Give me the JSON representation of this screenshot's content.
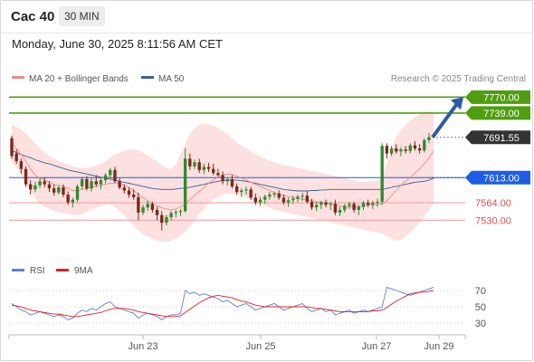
{
  "header": {
    "symbol": "Cac 40",
    "timeframe": "30 MIN",
    "datetime": "Monday, June 30, 2025 8:11:56 AM CET"
  },
  "legend": {
    "ma20": {
      "label": "MA 20 + Bollinger Bands",
      "color": "#f08a8a"
    },
    "ma50": {
      "label": "MA 50",
      "color": "#3a5f9c"
    },
    "credit": "Research © 2025 Trading Central"
  },
  "rsi_legend": {
    "rsi": {
      "label": "RSI",
      "color": "#5b7fd6"
    },
    "ma9": {
      "label": "9MA",
      "color": "#e02020"
    }
  },
  "colors": {
    "resistance": "#4f9e0f",
    "support": "#f4a0a0",
    "pivot": "#1d5ee6",
    "current": "#333333",
    "bull": "#2e8b2e",
    "bear": "#7a2a1a",
    "band_fill": "#fde0e0",
    "arrow": "#2b5aa8"
  },
  "chart_data": [
    {
      "type": "candlestick",
      "title": "",
      "ylim": [
        7490,
        7790
      ],
      "x_ticks": [
        "Jun 23",
        "Jun 25",
        "Jun 27",
        "Jun 29"
      ],
      "levels": [
        {
          "value": 7770.0,
          "label": "7770.00",
          "kind": "resistance"
        },
        {
          "value": 7739.0,
          "label": "7739.00",
          "kind": "resistance"
        },
        {
          "value": 7691.55,
          "label": "7691.55",
          "kind": "current"
        },
        {
          "value": 7613.0,
          "label": "7613.00",
          "kind": "pivot"
        },
        {
          "value": 7564.0,
          "label": "7564.00",
          "kind": "support"
        },
        {
          "value": 7530.0,
          "label": "7530.00",
          "kind": "support"
        }
      ],
      "candles": [
        [
          7690,
          7695,
          7650,
          7655
        ],
        [
          7660,
          7668,
          7640,
          7645
        ],
        [
          7645,
          7650,
          7620,
          7630
        ],
        [
          7630,
          7635,
          7595,
          7600
        ],
        [
          7600,
          7608,
          7580,
          7590
        ],
        [
          7590,
          7605,
          7585,
          7598
        ],
        [
          7598,
          7612,
          7592,
          7606
        ],
        [
          7606,
          7614,
          7594,
          7600
        ],
        [
          7600,
          7606,
          7585,
          7592
        ],
        [
          7592,
          7600,
          7578,
          7584
        ],
        [
          7584,
          7597,
          7580,
          7594
        ],
        [
          7594,
          7600,
          7575,
          7580
        ],
        [
          7580,
          7586,
          7560,
          7565
        ],
        [
          7565,
          7574,
          7555,
          7570
        ],
        [
          7570,
          7600,
          7566,
          7596
        ],
        [
          7596,
          7615,
          7590,
          7610
        ],
        [
          7610,
          7616,
          7588,
          7592
        ],
        [
          7592,
          7612,
          7586,
          7606
        ],
        [
          7606,
          7618,
          7595,
          7600
        ],
        [
          7600,
          7612,
          7590,
          7608
        ],
        [
          7608,
          7622,
          7602,
          7618
        ],
        [
          7618,
          7632,
          7612,
          7628
        ],
        [
          7628,
          7634,
          7602,
          7606
        ],
        [
          7606,
          7612,
          7590,
          7594
        ],
        [
          7594,
          7600,
          7582,
          7588
        ],
        [
          7588,
          7594,
          7574,
          7580
        ],
        [
          7580,
          7590,
          7570,
          7575
        ],
        [
          7575,
          7584,
          7530,
          7545
        ],
        [
          7545,
          7560,
          7540,
          7555
        ],
        [
          7555,
          7568,
          7548,
          7562
        ],
        [
          7562,
          7566,
          7545,
          7550
        ],
        [
          7550,
          7556,
          7530,
          7540
        ],
        [
          7540,
          7548,
          7510,
          7525
        ],
        [
          7525,
          7540,
          7520,
          7536
        ],
        [
          7536,
          7548,
          7530,
          7544
        ],
        [
          7544,
          7550,
          7536,
          7546
        ],
        [
          7546,
          7552,
          7538,
          7548
        ],
        [
          7548,
          7670,
          7545,
          7650
        ],
        [
          7650,
          7660,
          7628,
          7635
        ],
        [
          7635,
          7648,
          7630,
          7643
        ],
        [
          7643,
          7650,
          7622,
          7628
        ],
        [
          7628,
          7640,
          7620,
          7634
        ],
        [
          7634,
          7642,
          7624,
          7630
        ],
        [
          7630,
          7640,
          7618,
          7622
        ],
        [
          7622,
          7630,
          7615,
          7618
        ],
        [
          7618,
          7625,
          7600,
          7606
        ],
        [
          7606,
          7614,
          7598,
          7610
        ],
        [
          7610,
          7618,
          7592,
          7596
        ],
        [
          7596,
          7602,
          7580,
          7585
        ],
        [
          7585,
          7592,
          7575,
          7588
        ],
        [
          7588,
          7596,
          7580,
          7590
        ],
        [
          7590,
          7595,
          7570,
          7574
        ],
        [
          7574,
          7582,
          7560,
          7565
        ],
        [
          7565,
          7576,
          7558,
          7570
        ],
        [
          7570,
          7580,
          7562,
          7576
        ],
        [
          7576,
          7585,
          7570,
          7580
        ],
        [
          7580,
          7586,
          7574,
          7582
        ],
        [
          7582,
          7588,
          7570,
          7574
        ],
        [
          7574,
          7580,
          7560,
          7565
        ],
        [
          7565,
          7574,
          7556,
          7569
        ],
        [
          7569,
          7578,
          7562,
          7572
        ],
        [
          7572,
          7580,
          7566,
          7576
        ],
        [
          7576,
          7584,
          7568,
          7578
        ],
        [
          7578,
          7586,
          7562,
          7566
        ],
        [
          7566,
          7572,
          7550,
          7555
        ],
        [
          7555,
          7566,
          7548,
          7560
        ],
        [
          7560,
          7568,
          7552,
          7565
        ],
        [
          7565,
          7570,
          7555,
          7560
        ],
        [
          7560,
          7566,
          7550,
          7562
        ],
        [
          7562,
          7570,
          7540,
          7545
        ],
        [
          7545,
          7556,
          7538,
          7550
        ],
        [
          7550,
          7562,
          7545,
          7558
        ],
        [
          7558,
          7566,
          7552,
          7562
        ],
        [
          7562,
          7566,
          7545,
          7550
        ],
        [
          7550,
          7560,
          7540,
          7556
        ],
        [
          7556,
          7568,
          7550,
          7564
        ],
        [
          7564,
          7570,
          7556,
          7560
        ],
        [
          7560,
          7568,
          7552,
          7564
        ],
        [
          7564,
          7572,
          7556,
          7566
        ],
        [
          7566,
          7680,
          7560,
          7675
        ],
        [
          7675,
          7680,
          7650,
          7660
        ],
        [
          7660,
          7675,
          7655,
          7670
        ],
        [
          7670,
          7678,
          7660,
          7664
        ],
        [
          7664,
          7672,
          7655,
          7668
        ],
        [
          7668,
          7675,
          7660,
          7665
        ],
        [
          7665,
          7680,
          7660,
          7676
        ],
        [
          7676,
          7684,
          7666,
          7670
        ],
        [
          7670,
          7678,
          7660,
          7666
        ],
        [
          7666,
          7690,
          7662,
          7686
        ],
        [
          7686,
          7700,
          7680,
          7692
        ]
      ],
      "ma20": [
        7680,
        7670,
        7658,
        7645,
        7630,
        7618,
        7612,
        7608,
        7605,
        7600,
        7598,
        7596,
        7592,
        7588,
        7588,
        7590,
        7592,
        7594,
        7596,
        7598,
        7600,
        7602,
        7603,
        7602,
        7598,
        7594,
        7588,
        7580,
        7574,
        7568,
        7562,
        7558,
        7554,
        7552,
        7550,
        7552,
        7556,
        7562,
        7570,
        7578,
        7586,
        7594,
        7602,
        7608,
        7614,
        7618,
        7620,
        7619,
        7616,
        7612,
        7608,
        7604,
        7600,
        7596,
        7592,
        7588,
        7584,
        7580,
        7578,
        7576,
        7574,
        7572,
        7571,
        7570,
        7568,
        7566,
        7565,
        7564,
        7562,
        7560,
        7558,
        7556,
        7556,
        7556,
        7557,
        7558,
        7559,
        7560,
        7561,
        7562,
        7568,
        7578,
        7588,
        7598,
        7606,
        7614,
        7622,
        7630,
        7640,
        7652,
        7665
      ],
      "bb_upper": [
        7716,
        7712,
        7706,
        7700,
        7690,
        7680,
        7670,
        7662,
        7655,
        7650,
        7646,
        7642,
        7638,
        7635,
        7633,
        7632,
        7632,
        7634,
        7636,
        7640,
        7646,
        7652,
        7658,
        7662,
        7665,
        7668,
        7668,
        7666,
        7662,
        7656,
        7650,
        7644,
        7638,
        7632,
        7630,
        7640,
        7660,
        7680,
        7698,
        7710,
        7716,
        7718,
        7717,
        7714,
        7710,
        7704,
        7698,
        7690,
        7682,
        7676,
        7670,
        7664,
        7658,
        7654,
        7650,
        7646,
        7643,
        7640,
        7638,
        7636,
        7634,
        7632,
        7630,
        7628,
        7626,
        7624,
        7622,
        7620,
        7618,
        7616,
        7614,
        7612,
        7610,
        7608,
        7606,
        7605,
        7605,
        7606,
        7608,
        7612,
        7640,
        7670,
        7692,
        7706,
        7716,
        7724,
        7730,
        7736,
        7740,
        7742,
        7742
      ],
      "bb_lower": [
        7644,
        7632,
        7620,
        7605,
        7588,
        7572,
        7562,
        7556,
        7552,
        7548,
        7546,
        7544,
        7542,
        7540,
        7540,
        7542,
        7546,
        7550,
        7554,
        7558,
        7560,
        7560,
        7556,
        7548,
        7540,
        7530,
        7520,
        7510,
        7503,
        7498,
        7494,
        7490,
        7488,
        7488,
        7490,
        7494,
        7500,
        7508,
        7518,
        7530,
        7542,
        7552,
        7562,
        7570,
        7576,
        7580,
        7582,
        7582,
        7580,
        7578,
        7574,
        7570,
        7566,
        7562,
        7558,
        7554,
        7550,
        7548,
        7546,
        7544,
        7542,
        7540,
        7538,
        7536,
        7534,
        7532,
        7530,
        7528,
        7526,
        7524,
        7522,
        7520,
        7518,
        7516,
        7514,
        7512,
        7510,
        7508,
        7506,
        7504,
        7500,
        7494,
        7490,
        7492,
        7498,
        7506,
        7516,
        7526,
        7538,
        7550,
        7564
      ],
      "ma50": [
        7665,
        7662,
        7658,
        7655,
        7652,
        7648,
        7645,
        7642,
        7640,
        7637,
        7634,
        7631,
        7628,
        7626,
        7624,
        7622,
        7620,
        7618,
        7616,
        7614,
        7612,
        7610,
        7608,
        7606,
        7604,
        7602,
        7600,
        7598,
        7596,
        7594,
        7592,
        7591,
        7590,
        7590,
        7590,
        7591,
        7592,
        7593,
        7594,
        7596,
        7598,
        7600,
        7602,
        7604,
        7606,
        7607,
        7608,
        7608,
        7608,
        7607,
        7606,
        7604,
        7602,
        7600,
        7598,
        7596,
        7594,
        7592,
        7590,
        7589,
        7588,
        7587,
        7587,
        7587,
        7588,
        7588,
        7589,
        7589,
        7590,
        7590,
        7590,
        7590,
        7590,
        7590,
        7590,
        7590,
        7590,
        7590,
        7590,
        7590,
        7592,
        7594,
        7596,
        7598,
        7600,
        7602,
        7604,
        7605,
        7606,
        7608,
        7612
      ]
    },
    {
      "type": "line",
      "title": "",
      "ylim": [
        20,
        80
      ],
      "y_ticks": [
        "70",
        "50",
        "30"
      ],
      "series": [
        {
          "name": "RSI",
          "values": [
            54,
            50,
            46,
            44,
            40,
            42,
            44,
            42,
            40,
            38,
            40,
            38,
            34,
            36,
            42,
            46,
            44,
            48,
            46,
            50,
            54,
            56,
            50,
            48,
            46,
            44,
            42,
            36,
            40,
            42,
            40,
            38,
            34,
            38,
            40,
            40,
            42,
            70,
            66,
            68,
            64,
            66,
            64,
            62,
            60,
            56,
            58,
            54,
            50,
            52,
            54,
            50,
            46,
            48,
            50,
            52,
            54,
            50,
            46,
            48,
            50,
            52,
            54,
            48,
            44,
            46,
            48,
            44,
            46,
            40,
            42,
            44,
            46,
            42,
            44,
            46,
            44,
            46,
            48,
            50,
            74,
            72,
            70,
            68,
            66,
            64,
            66,
            68,
            70,
            72,
            74
          ]
        },
        {
          "name": "9MA",
          "values": [
            52,
            51,
            50,
            48,
            46,
            45,
            44,
            43,
            42,
            41,
            41,
            40,
            39,
            38,
            38,
            39,
            40,
            41,
            42,
            43,
            45,
            47,
            48,
            48,
            48,
            47,
            46,
            44,
            43,
            42,
            41,
            40,
            39,
            38,
            38,
            38,
            39,
            43,
            47,
            51,
            55,
            58,
            61,
            63,
            64,
            63,
            62,
            61,
            59,
            57,
            56,
            54,
            52,
            51,
            50,
            50,
            50,
            50,
            50,
            50,
            50,
            50,
            50,
            50,
            49,
            48,
            48,
            47,
            46,
            45,
            44,
            44,
            44,
            44,
            44,
            44,
            44,
            45,
            45,
            46,
            49,
            53,
            57,
            60,
            63,
            66,
            67,
            68,
            68,
            69,
            70
          ]
        }
      ]
    }
  ]
}
